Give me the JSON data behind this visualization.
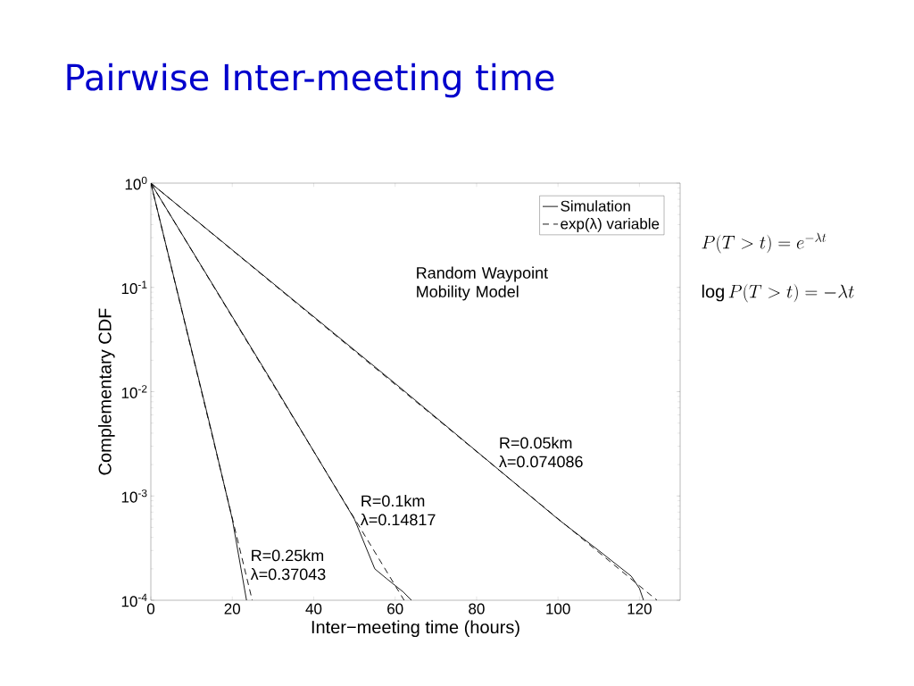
{
  "chart_data": {
    "type": "line",
    "title": "Pairwise Inter-meeting time",
    "xlabel": "Inter−meeting time (hours)",
    "ylabel": "Complementary CDF",
    "log": "y",
    "xlim": [
      0,
      130
    ],
    "ylim": [
      0.0001,
      1
    ],
    "xticks": [
      0,
      20,
      40,
      60,
      80,
      100,
      120
    ],
    "yticks": [
      {
        "value": 0.0001,
        "label": "10$^{-4}$"
      },
      {
        "value": 0.001,
        "label": "10$^{-3}$"
      },
      {
        "value": 0.01,
        "label": "10$^{-2}$"
      },
      {
        "value": 0.1,
        "label": "10$^{-1}$"
      },
      {
        "value": 1,
        "label": "10$^{0}$"
      }
    ],
    "grid": false,
    "legend": "top right",
    "marker": "none",
    "series": [
      {
        "name": "Simulation",
        "color": "#000000",
        "line_style": "solid",
        "x": [
          0,
          15,
          20,
          23.5
        ],
        "values": [
          1,
          0.004,
          0.0006,
          0.0001
        ]
      },
      {
        "color": "#000000",
        "line_style": "solid",
        "x": [
          0,
          30,
          50,
          55,
          58,
          62,
          64
        ],
        "values": [
          1,
          0.012,
          0.0006,
          0.0002,
          0.00016,
          0.00012,
          0.0001
        ]
      },
      {
        "color": "#000000",
        "line_style": "solid",
        "x": [
          0,
          60,
          100,
          110,
          118,
          120,
          121
        ],
        "values": [
          1,
          0.012,
          0.0006,
          0.0003,
          0.00017,
          0.00013,
          0.0001
        ]
      },
      {
        "name": "exp(λ) variable",
        "color": "#000000",
        "line_style": "dashed",
        "x": [
          0,
          24.9
        ],
        "values": [
          1,
          0.0001
        ]
      },
      {
        "color": "#000000",
        "line_style": "dashed",
        "x": [
          0,
          62.2
        ],
        "values": [
          1,
          0.0001
        ]
      },
      {
        "color": "#000000",
        "line_style": "dashed",
        "x": [
          0,
          124.3
        ],
        "values": [
          1,
          0.0001
        ]
      }
    ],
    "annotations": [
      "Random Waypoint Mobility Model",
      {
        "text": "R=0.25km λ=0.37043",
        "x": 24,
        "y": 0.00015
      },
      {
        "text": "R=0.1km λ=0.14817",
        "x": 51,
        "y": 0.0005
      },
      {
        "text": "R=0.05km λ=0.074086",
        "x": 85,
        "y": 0.0018
      },
      "P(T>t)=e^{-\\lambda t}",
      "\\log P(T>t)=-\\lambda t"
    ]
  }
}
